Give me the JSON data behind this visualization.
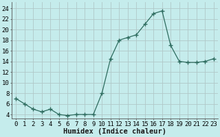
{
  "x": [
    0,
    1,
    2,
    3,
    4,
    5,
    6,
    7,
    8,
    9,
    10,
    11,
    12,
    13,
    14,
    15,
    16,
    17,
    18,
    19,
    20,
    21,
    22,
    23
  ],
  "y": [
    7,
    6,
    5,
    4.5,
    5,
    4,
    3.8,
    4,
    4,
    4,
    8,
    14.5,
    18,
    18.5,
    19,
    21,
    23,
    23.5,
    17,
    14,
    13.8,
    13.8,
    14,
    14.5
  ],
  "line_color": "#2d6b5e",
  "marker": "+",
  "marker_size": 4,
  "bg_color": "#c5ecec",
  "grid_color": "#b0c8c8",
  "xlabel": "Humidex (Indice chaleur)",
  "xlabel_fontsize": 7.5,
  "xtick_labels": [
    "0",
    "1",
    "2",
    "3",
    "4",
    "5",
    "6",
    "7",
    "8",
    "9",
    "10",
    "11",
    "12",
    "13",
    "14",
    "15",
    "16",
    "17",
    "18",
    "19",
    "20",
    "21",
    "22",
    "23"
  ],
  "ytick_labels": [
    "4",
    "6",
    "8",
    "10",
    "12",
    "14",
    "16",
    "18",
    "20",
    "22",
    "24"
  ],
  "yticks": [
    4,
    6,
    8,
    10,
    12,
    14,
    16,
    18,
    20,
    22,
    24
  ],
  "ylim": [
    3.2,
    25.2
  ],
  "xlim": [
    -0.5,
    23.5
  ],
  "tick_fontsize": 6.5,
  "title": ""
}
